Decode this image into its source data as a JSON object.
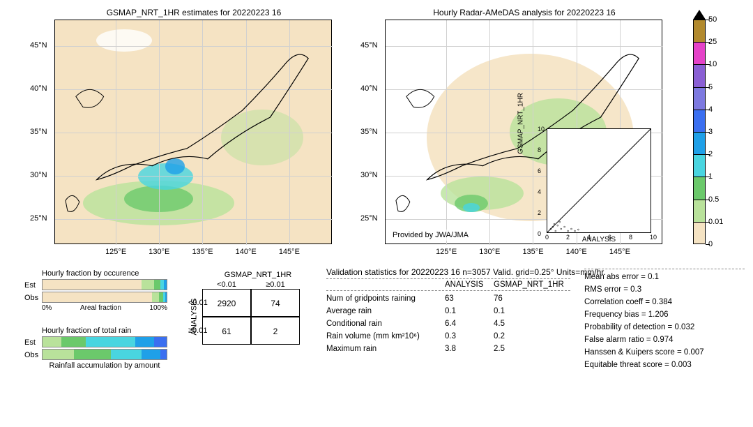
{
  "maps": {
    "left": {
      "title": "GSMAP_NRT_1HR estimates for 20220223 16",
      "xlim": [
        118,
        150
      ],
      "ylim": [
        22,
        48
      ],
      "xticks": [
        125,
        130,
        135,
        140,
        145
      ],
      "yticks": [
        25,
        30,
        35,
        40,
        45
      ],
      "xtick_labels": [
        "125°E",
        "130°E",
        "135°E",
        "140°E",
        "145°E"
      ],
      "ytick_labels": [
        "25°N",
        "30°N",
        "35°N",
        "40°N",
        "45°N"
      ],
      "background_color": "#f5e3c3"
    },
    "right": {
      "title": "Hourly Radar-AMeDAS analysis for 20220223 16",
      "credit": "Provided by JWA/JMA",
      "xlim": [
        118,
        150
      ],
      "ylim": [
        22,
        48
      ],
      "xticks": [
        125,
        130,
        135,
        140,
        145
      ],
      "yticks": [
        25,
        30,
        35,
        40,
        45
      ],
      "xtick_labels": [
        "125°E",
        "130°E",
        "135°E",
        "140°E",
        "145°E"
      ],
      "ytick_labels": [
        "25°N",
        "30°N",
        "35°N",
        "40°N",
        "45°N"
      ],
      "background_color": "#ffffff"
    }
  },
  "colorbar": {
    "ticks": [
      "50",
      "25",
      "10",
      "5",
      "4",
      "3",
      "2",
      "1",
      "0.5",
      "0.01",
      "0"
    ],
    "colors": [
      "#b28a2e",
      "#e542c8",
      "#8a5fd4",
      "#7d79e0",
      "#3b6ff0",
      "#1fa0e8",
      "#49d5e0",
      "#6bc96b",
      "#b9e29b",
      "#f5e3c3"
    ],
    "arrow_color": "#000000"
  },
  "scatter_inset": {
    "xlabel": "ANALYSIS",
    "ylabel": "GSMAP_NRT_1HR",
    "xlim": [
      0,
      10
    ],
    "ylim": [
      0,
      10
    ],
    "xticks": [
      0,
      2,
      4,
      6,
      8,
      10
    ],
    "yticks": [
      0,
      2,
      4,
      6,
      8,
      10
    ]
  },
  "hourly_fraction_occurrence": {
    "title": "Hourly fraction by occurence",
    "est": [
      {
        "w": 80,
        "color": "#f5e3c3"
      },
      {
        "w": 10,
        "color": "#b9e29b"
      },
      {
        "w": 5,
        "color": "#6bc96b"
      },
      {
        "w": 3,
        "color": "#49d5e0"
      },
      {
        "w": 2,
        "color": "#1fa0e8"
      }
    ],
    "obs": [
      {
        "w": 88,
        "color": "#f5e3c3"
      },
      {
        "w": 6,
        "color": "#b9e29b"
      },
      {
        "w": 3,
        "color": "#6bc96b"
      },
      {
        "w": 2,
        "color": "#49d5e0"
      },
      {
        "w": 1,
        "color": "#1fa0e8"
      }
    ],
    "xaxis_left": "0%",
    "xaxis_right": "100%",
    "xaxis_label": "Areal fraction"
  },
  "hourly_fraction_total": {
    "title": "Hourly fraction of total rain",
    "est": [
      {
        "w": 15,
        "color": "#b9e29b"
      },
      {
        "w": 20,
        "color": "#6bc96b"
      },
      {
        "w": 40,
        "color": "#49d5e0"
      },
      {
        "w": 15,
        "color": "#1fa0e8"
      },
      {
        "w": 10,
        "color": "#3b6ff0"
      }
    ],
    "obs": [
      {
        "w": 25,
        "color": "#b9e29b"
      },
      {
        "w": 30,
        "color": "#6bc96b"
      },
      {
        "w": 25,
        "color": "#49d5e0"
      },
      {
        "w": 15,
        "color": "#1fa0e8"
      },
      {
        "w": 5,
        "color": "#3b6ff0"
      }
    ],
    "caption": "Rainfall accumulation by amount"
  },
  "contingency": {
    "title": "GSMAP_NRT_1HR",
    "col_headers": [
      "<0.01",
      "≥0.01"
    ],
    "row_headers": [
      "<0.01",
      "≥0.01"
    ],
    "ylabel": "ANALYSIS",
    "cells": [
      [
        "2920",
        "74"
      ],
      [
        "61",
        "2"
      ]
    ]
  },
  "stats": {
    "title": "Validation statistics for 20220223 16  n=3057 Valid. grid=0.25°  Units=mm/hr.",
    "col_headers": [
      "",
      "ANALYSIS",
      "GSMAP_NRT_1HR"
    ],
    "rows": [
      {
        "label": "Num of gridpoints raining",
        "a": "63",
        "b": "76"
      },
      {
        "label": "Average rain",
        "a": "0.1",
        "b": "0.1"
      },
      {
        "label": "Conditional rain",
        "a": "6.4",
        "b": "4.5"
      },
      {
        "label": "Rain volume (mm km²10⁶)",
        "a": "0.3",
        "b": "0.2"
      },
      {
        "label": "Maximum rain",
        "a": "3.8",
        "b": "2.5"
      }
    ]
  },
  "metrics": [
    {
      "label": "Mean abs error =",
      "v": "0.1"
    },
    {
      "label": "RMS error =",
      "v": "0.3"
    },
    {
      "label": "Correlation coeff =",
      "v": "0.384"
    },
    {
      "label": "Frequency bias =",
      "v": "1.206"
    },
    {
      "label": "Probability of detection =",
      "v": "0.032"
    },
    {
      "label": "False alarm ratio =",
      "v": "0.974"
    },
    {
      "label": "Hanssen & Kuipers score =",
      "v": "0.007"
    },
    {
      "label": "Equitable threat score =",
      "v": "0.003"
    }
  ]
}
